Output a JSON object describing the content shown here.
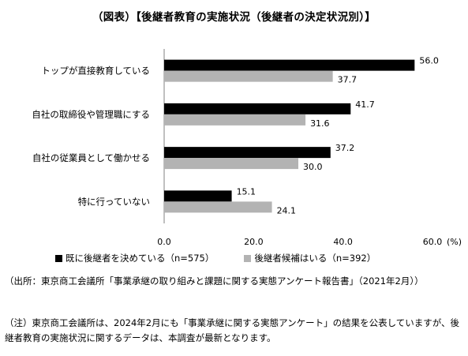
{
  "title": "（図表）【後継者教育の実施状況（後継者の決定状況別）】",
  "chart_data": {
    "type": "bar",
    "orientation": "horizontal",
    "categories": [
      "トップが直接教育している",
      "自社の取締役や管理職にする",
      "自社の従業員として働かせる",
      "特に行っていない"
    ],
    "series": [
      {
        "name": "既に後継者を決めている（n=575）",
        "values": [
          56.0,
          41.7,
          37.2,
          15.1
        ],
        "color": "#000000",
        "labels": [
          "56.0",
          "41.7",
          "37.2",
          "15.1"
        ]
      },
      {
        "name": "後継者候補はいる（n=392）",
        "values": [
          37.7,
          31.6,
          30.0,
          24.1
        ],
        "color": "#b3b3b3",
        "labels": [
          "37.7",
          "31.6",
          "30.0",
          "24.1"
        ]
      }
    ],
    "xlim": [
      0,
      60
    ],
    "ticks": [
      "0.0",
      "20.0",
      "40.0",
      "60.0"
    ],
    "tick_values": [
      0,
      20,
      40,
      60
    ],
    "unit_label": "(%)",
    "grid": false,
    "legend_position": "bottom"
  },
  "source": "（出所：東京商工会議所「事業承継の取り組みと課題に関する実態アンケート報告書」（2021年2月））",
  "footnote": "（注）東京商工会議所は、2024年2月にも「事業承継に関する実態アンケート」の結果を公表していますが、後継者教育の実施状況に関するデータは、本調査が最新となります。"
}
